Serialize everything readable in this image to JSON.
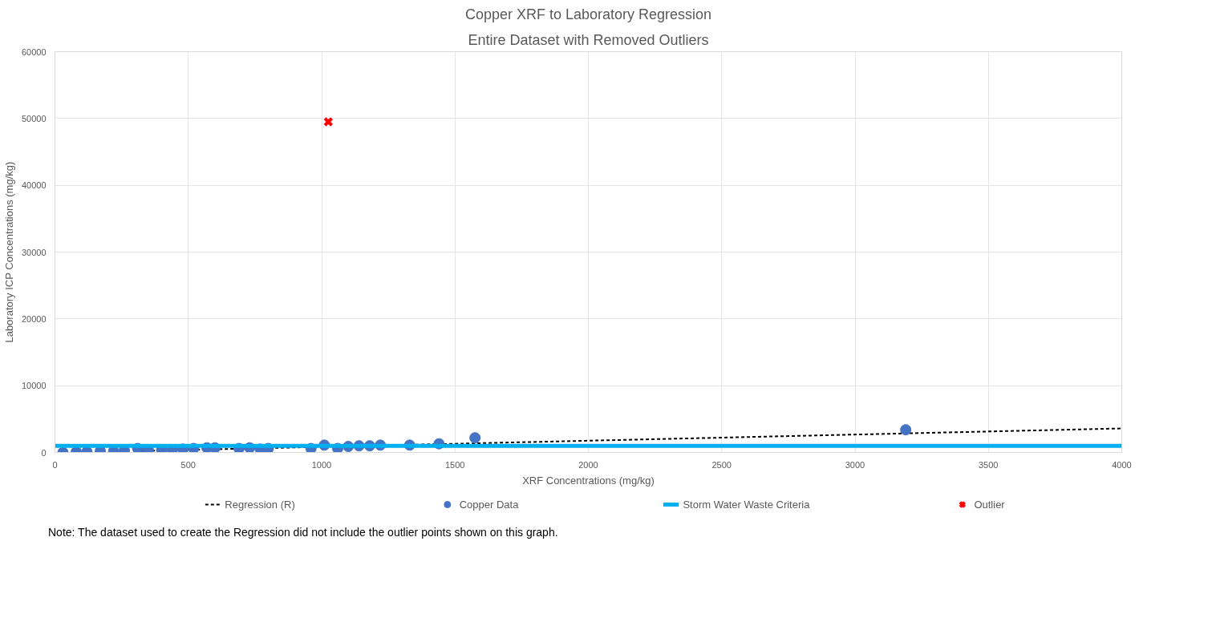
{
  "chart_data": {
    "type": "scatter",
    "title": "Copper XRF to Laboratory Regression",
    "subtitle": "Entire Dataset with Removed Outliers",
    "xlabel": "XRF Concentrations (mg/kg)",
    "ylabel": "Laboratory ICP Concentrations (mg/kg)",
    "xlim": [
      0,
      4000
    ],
    "ylim": [
      0,
      60000
    ],
    "xticks": [
      0,
      500,
      1000,
      1500,
      2000,
      2500,
      3000,
      3500,
      4000
    ],
    "yticks": [
      0,
      10000,
      20000,
      30000,
      40000,
      50000,
      60000
    ],
    "grid": true,
    "legend": "bottom",
    "series": [
      {
        "name": "Regression (R)",
        "type": "line",
        "line_style": "dashed",
        "marker": "none",
        "color": "#000000",
        "x": [
          300,
          4000
        ],
        "values": [
          200,
          3600
        ]
      },
      {
        "name": "Copper Data",
        "marker": "circle",
        "color": "#4472c4",
        "x": [
          30,
          80,
          120,
          170,
          220,
          260,
          310,
          350,
          400,
          440,
          480,
          520,
          570,
          600,
          690,
          730,
          770,
          800,
          960,
          1010,
          1060,
          1100,
          1140,
          1180,
          1220,
          1330,
          1440,
          1575,
          3190
        ],
        "values": [
          0,
          100,
          100,
          200,
          200,
          300,
          600,
          400,
          400,
          400,
          500,
          600,
          700,
          700,
          600,
          700,
          500,
          600,
          600,
          1100,
          600,
          900,
          1000,
          1000,
          1100,
          1100,
          1300,
          2200,
          3400
        ]
      },
      {
        "name": "Storm Water Waste Criteria",
        "type": "line",
        "line_style": "solid",
        "marker": "none",
        "color": "#00b0f0",
        "x": [
          0,
          4000
        ],
        "values": [
          1000,
          1000
        ]
      },
      {
        "name": "Outlier",
        "marker": "cross",
        "color": "#ff0000",
        "x": [
          1025
        ],
        "values": [
          49500
        ]
      }
    ],
    "annotations": [
      "Note: The dataset used to create the Regression did not include the outlier points shown on this graph."
    ]
  }
}
